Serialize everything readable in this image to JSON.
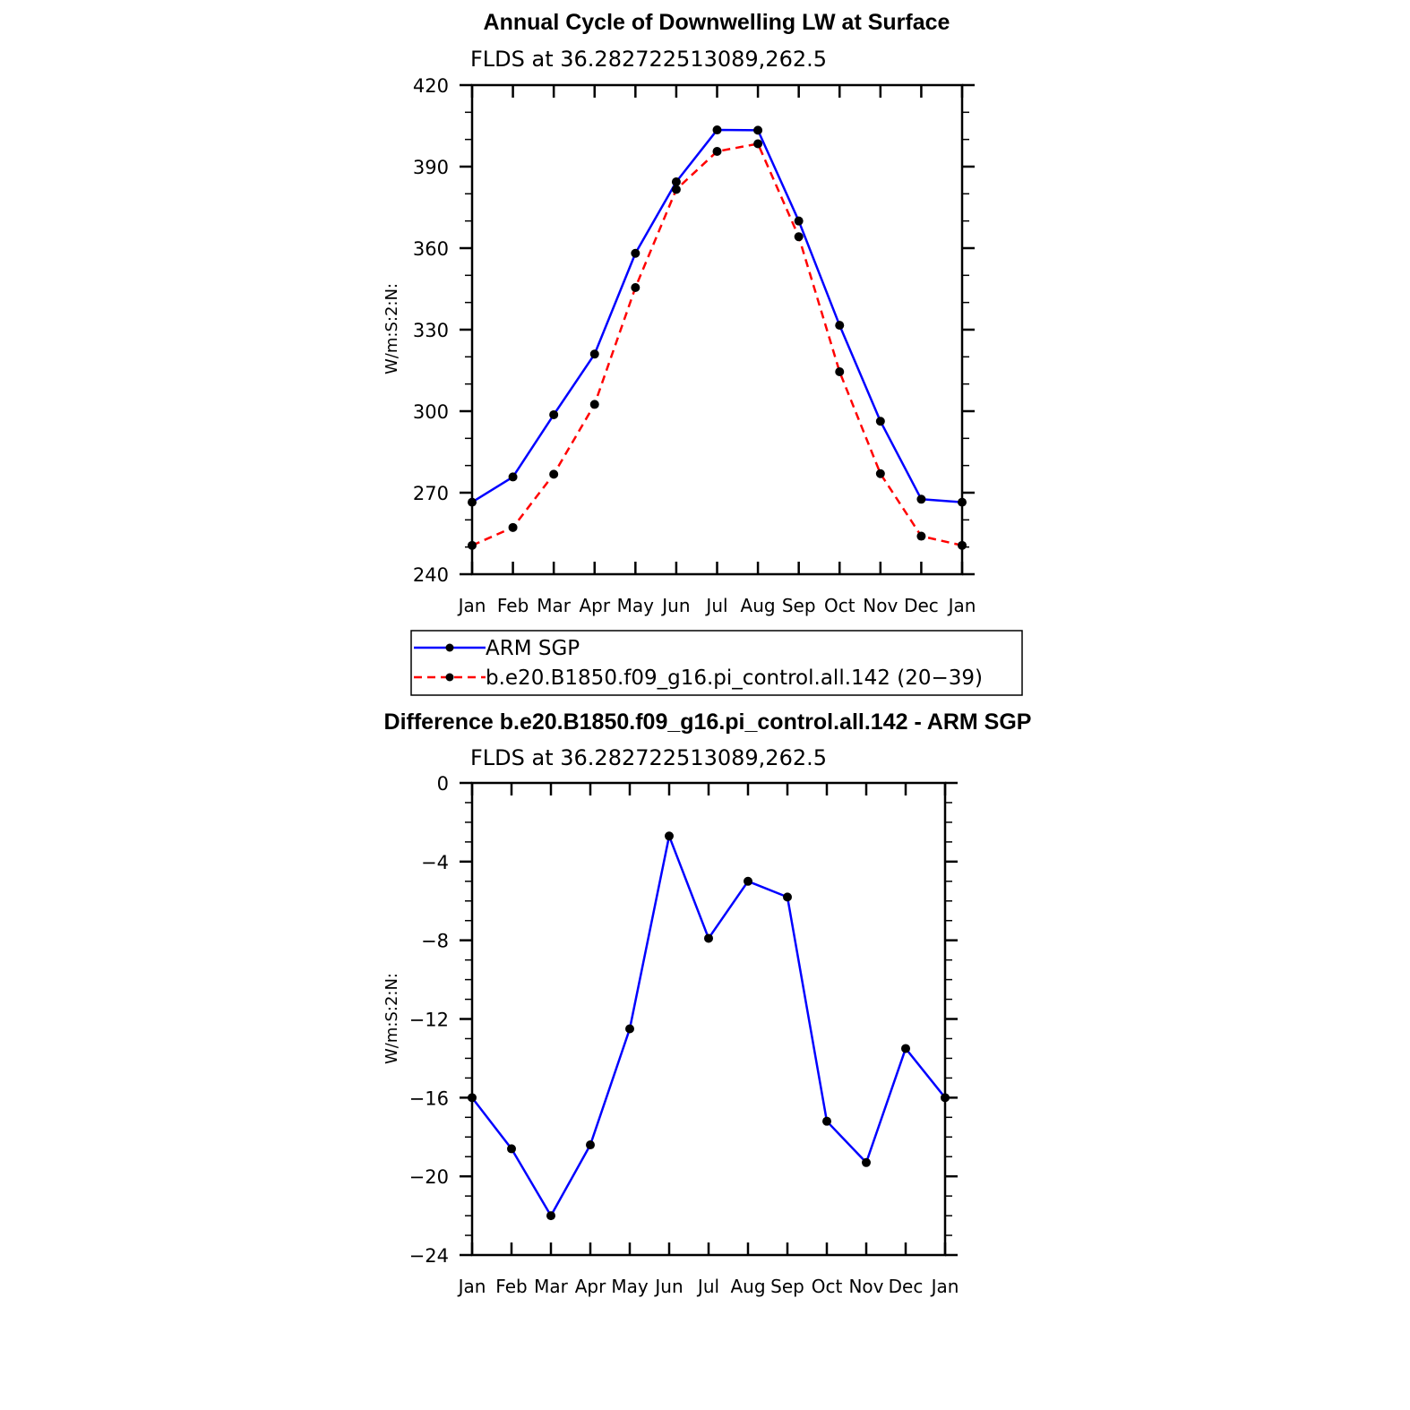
{
  "chart_data": [
    {
      "type": "line",
      "title": "Annual Cycle of Downwelling LW at Surface",
      "subtitle": "FLDS at 36.282722513089,262.5",
      "ylabel": "W/m:S:2:N:",
      "xlabel": "",
      "categories": [
        "Jan",
        "Feb",
        "Mar",
        "Apr",
        "May",
        "Jun",
        "Jul",
        "Aug",
        "Sep",
        "Oct",
        "Nov",
        "Dec",
        "Jan"
      ],
      "ylim": [
        240,
        420
      ],
      "yticks": [
        "240",
        "270",
        "300",
        "330",
        "360",
        "390",
        "420"
      ],
      "series": [
        {
          "name": "ARM SGP",
          "color": "#0000ff",
          "dash": "solid",
          "values": [
            266.5,
            275.8,
            298.7,
            321.0,
            358.1,
            384.4,
            403.5,
            403.4,
            370.0,
            331.6,
            296.3,
            267.6,
            266.5
          ]
        },
        {
          "name": "b.e20.B1850.f09_g16.pi_control.all.142 (20−39)",
          "color": "#ff0000",
          "dash": "dashed",
          "values": [
            250.6,
            257.2,
            276.8,
            302.5,
            345.5,
            381.6,
            395.6,
            398.4,
            364.2,
            314.5,
            277.0,
            254.0,
            250.6
          ]
        }
      ],
      "legend_position": "below"
    },
    {
      "type": "line",
      "title": "Difference b.e20.B1850.f09_g16.pi_control.all.142 - ARM SGP",
      "subtitle": "FLDS at 36.282722513089,262.5",
      "ylabel": "W/m:S:2:N:",
      "xlabel": "",
      "categories": [
        "Jan",
        "Feb",
        "Mar",
        "Apr",
        "May",
        "Jun",
        "Jul",
        "Aug",
        "Sep",
        "Oct",
        "Nov",
        "Dec",
        "Jan"
      ],
      "ylim": [
        -24,
        0
      ],
      "yticks": [
        "−24",
        "−20",
        "−16",
        "−12",
        "−8",
        "−4",
        "0"
      ],
      "series": [
        {
          "name": "Difference",
          "color": "#0000ff",
          "dash": "solid",
          "values": [
            -16.0,
            -18.6,
            -22.0,
            -18.4,
            -12.5,
            -2.7,
            -7.9,
            -5.0,
            -5.8,
            -17.2,
            -19.3,
            -13.5,
            -16.0
          ]
        }
      ]
    }
  ]
}
